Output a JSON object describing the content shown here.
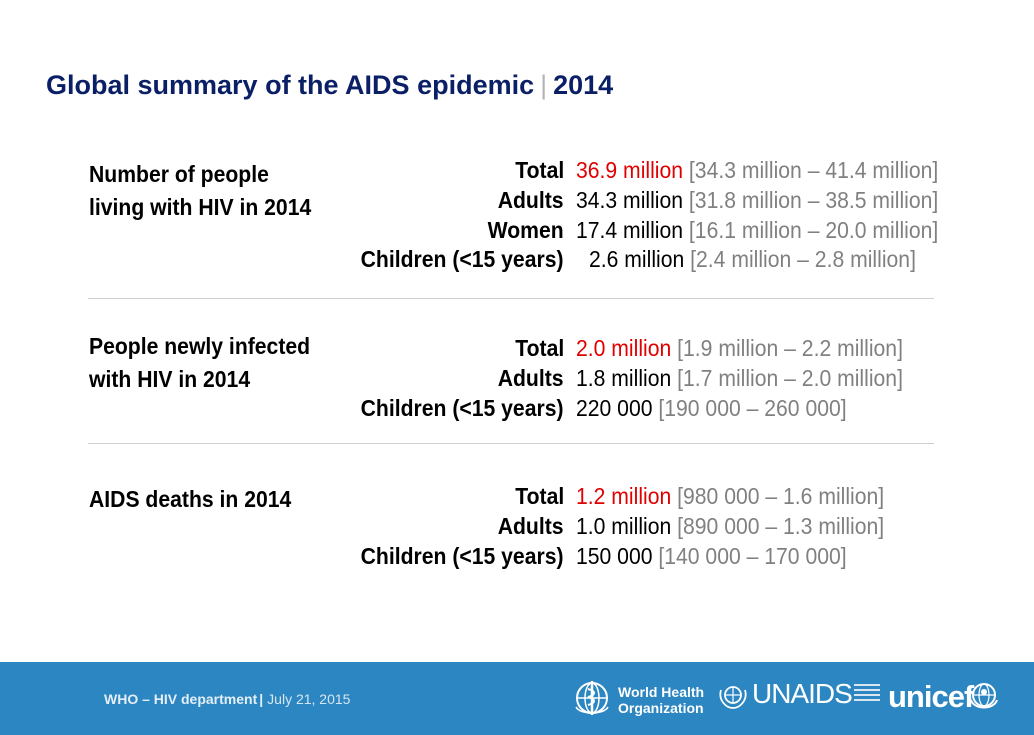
{
  "title": {
    "main": "Global summary of the AIDS epidemic",
    "separator": "|",
    "year": "2014"
  },
  "sections": [
    {
      "label": "Number of people living with HIV in 2014",
      "rows": [
        {
          "label": "Total",
          "value": "36.9 million",
          "range": "[34.3 million – 41.4 million]"
        },
        {
          "label": "Adults",
          "value": "34.3 million",
          "range": "[31.8 million – 38.5 million]"
        },
        {
          "label": "Women",
          "value": "17.4 million",
          "range": "[16.1 million – 20.0 million]"
        },
        {
          "label": "Children (<15 years)",
          "value": "2.6 million",
          "range": "[2.4 million – 2.8 million]"
        }
      ]
    },
    {
      "label": "People newly infected with HIV in 2014",
      "rows": [
        {
          "label": "Total",
          "value": "2.0 million",
          "range": "[1.9 million – 2.2 million]"
        },
        {
          "label": "Adults",
          "value": "1.8 million",
          "range": "[1.7 million – 2.0 million]"
        },
        {
          "label": "Children (<15 years)",
          "value": "220 000",
          "range": "[190 000 – 260 000]"
        }
      ]
    },
    {
      "label": "AIDS deaths in 2014",
      "rows": [
        {
          "label": "Total",
          "value": "1.2 million",
          "range": "[980 000 – 1.6 million]"
        },
        {
          "label": "Adults",
          "value": "1.0 million",
          "range": "[890 000 – 1.3 million]"
        },
        {
          "label": "Children (<15 years)",
          "value": "150 000",
          "range": "[140 000 – 170 000]"
        }
      ]
    }
  ],
  "footer": {
    "department": "WHO – HIV department",
    "separator": "|",
    "date": "July 21, 2015",
    "logos": {
      "who_line1": "World Health",
      "who_line2": "Organization",
      "unaids": "UNAIDS",
      "unicef": "unicef"
    }
  },
  "colors": {
    "title": "#0b1f66",
    "highlight": "#e00000",
    "range": "#808080",
    "footer_bg": "#2b86c1"
  }
}
